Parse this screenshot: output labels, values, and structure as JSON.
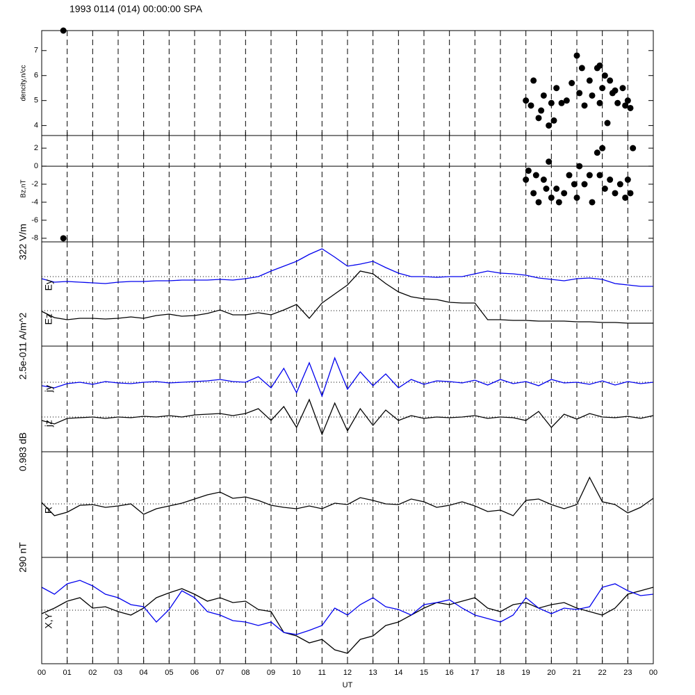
{
  "title": "1993 0114 (014) 00:00:00 SPA",
  "chart_data": [
    {
      "type": "scatter",
      "ylabel": "dencity,n/cc",
      "xlim": [
        0,
        24
      ],
      "ylim": [
        3.6,
        7.8
      ],
      "yticks": [
        4,
        5,
        6,
        7
      ],
      "color": "#000000",
      "x": [
        19.0,
        19.2,
        19.3,
        19.5,
        19.7,
        19.9,
        20.0,
        20.2,
        20.4,
        20.6,
        20.8,
        21.0,
        21.1,
        21.3,
        21.5,
        21.6,
        21.8,
        21.9,
        22.0,
        22.1,
        22.2,
        22.3,
        22.4,
        22.6,
        22.8,
        22.9,
        23.0,
        23.1,
        20.1,
        19.6,
        21.2,
        21.9,
        22.5,
        0.85
      ],
      "values": [
        5.0,
        4.8,
        5.8,
        4.3,
        5.2,
        4.0,
        4.9,
        5.5,
        4.9,
        5.0,
        5.7,
        6.8,
        5.3,
        4.8,
        5.8,
        5.2,
        6.3,
        4.9,
        5.5,
        6.0,
        4.1,
        5.8,
        5.3,
        4.9,
        5.5,
        4.8,
        5.0,
        4.7,
        4.2,
        4.6,
        6.3,
        6.4,
        5.4,
        7.8
      ]
    },
    {
      "type": "scatter",
      "ylabel": "Bz,nT",
      "xlim": [
        0,
        24
      ],
      "ylim": [
        -8.4,
        3.4
      ],
      "yticks": [
        -8,
        -6,
        -4,
        -2,
        0,
        2
      ],
      "zero_line": true,
      "color": "#000000",
      "x": [
        19.0,
        19.1,
        19.3,
        19.4,
        19.5,
        19.7,
        19.8,
        19.9,
        20.0,
        20.2,
        20.3,
        20.5,
        20.7,
        20.9,
        21.0,
        21.1,
        21.3,
        21.5,
        21.6,
        21.8,
        21.9,
        22.0,
        22.1,
        22.3,
        22.5,
        22.7,
        22.9,
        23.0,
        23.1,
        23.2,
        0.85
      ],
      "values": [
        -1.5,
        -0.5,
        -3.0,
        -1.0,
        -4.0,
        -1.5,
        -2.5,
        0.5,
        -3.5,
        -2.5,
        -4.0,
        -3.0,
        -1.0,
        -2.0,
        -3.5,
        0.0,
        -2.0,
        -1.0,
        -4.0,
        1.5,
        -1.0,
        2.0,
        -2.5,
        -1.5,
        -3.0,
        -2.0,
        -3.5,
        -1.5,
        -3.0,
        2.0,
        -8.0
      ]
    },
    {
      "type": "line",
      "scale_label": "322 V/m",
      "xlim": [
        0,
        24
      ],
      "ylim": [
        0,
        150
      ],
      "reference": [
        100,
        51
      ],
      "x": [
        0,
        0.5,
        1,
        1.5,
        2,
        2.5,
        3,
        3.5,
        4,
        4.5,
        5,
        5.5,
        6,
        6.5,
        7,
        7.5,
        8,
        8.5,
        9,
        9.5,
        10,
        10.5,
        11,
        11.5,
        12,
        12.5,
        13,
        13.5,
        14,
        14.5,
        15,
        15.5,
        16,
        16.5,
        17,
        17.5,
        18,
        18.5,
        19,
        19.5,
        20,
        20.5,
        21,
        21.5,
        22,
        22.5,
        23,
        23.5,
        24
      ],
      "series": [
        {
          "name": "Ey",
          "color": "#0000ee",
          "values": [
            97,
            92,
            93,
            92,
            91,
            90,
            92,
            93,
            93,
            94,
            94,
            95,
            95,
            95,
            96,
            95,
            97,
            100,
            108,
            115,
            122,
            132,
            140,
            128,
            115,
            118,
            122,
            113,
            105,
            100,
            100,
            99,
            100,
            100,
            104,
            108,
            105,
            104,
            102,
            98,
            96,
            94,
            97,
            98,
            96,
            90,
            88,
            86,
            86
          ]
        },
        {
          "name": "Ez",
          "color": "#000000",
          "values": [
            50,
            41,
            38,
            40,
            40,
            39,
            40,
            42,
            40,
            44,
            46,
            43,
            44,
            47,
            52,
            45,
            45,
            48,
            45,
            52,
            60,
            40,
            62,
            75,
            88,
            108,
            104,
            90,
            78,
            71,
            68,
            67,
            63,
            62,
            62,
            38,
            38,
            37,
            37,
            36,
            36,
            36,
            35,
            35,
            34,
            34,
            33,
            33,
            33
          ]
        }
      ]
    },
    {
      "type": "line",
      "scale_label": "2.5e-011 A/m^2",
      "xlim": [
        0,
        24
      ],
      "ylim": [
        0,
        152
      ],
      "reference": [
        100,
        50
      ],
      "x": [
        0,
        0.5,
        1,
        1.5,
        2,
        2.5,
        3,
        3.5,
        4,
        4.5,
        5,
        5.5,
        6,
        6.5,
        7,
        7.5,
        8,
        8.5,
        9,
        9.5,
        10,
        10.5,
        11,
        11.5,
        12,
        12.5,
        13,
        13.5,
        14,
        14.5,
        15,
        15.5,
        16,
        16.5,
        17,
        17.5,
        18,
        18.5,
        19,
        19.5,
        20,
        20.5,
        21,
        21.5,
        22,
        22.5,
        23,
        23.5,
        24
      ],
      "series": [
        {
          "name": "jy",
          "color": "#0000ee",
          "values": [
            95,
            92,
            98,
            100,
            97,
            101,
            99,
            98,
            100,
            101,
            99,
            100,
            101,
            102,
            104,
            101,
            100,
            108,
            92,
            120,
            85,
            128,
            80,
            135,
            90,
            115,
            95,
            112,
            92,
            104,
            97,
            102,
            101,
            99,
            103,
            96,
            104,
            98,
            101,
            95,
            104,
            99,
            100,
            97,
            102,
            96,
            101,
            98,
            100
          ]
        },
        {
          "name": "jz",
          "color": "#000000",
          "values": [
            45,
            40,
            48,
            49,
            50,
            48,
            50,
            49,
            51,
            50,
            52,
            50,
            53,
            54,
            55,
            52,
            55,
            62,
            45,
            65,
            35,
            75,
            25,
            70,
            30,
            62,
            38,
            60,
            45,
            52,
            48,
            50,
            49,
            50,
            52,
            48,
            50,
            49,
            45,
            58,
            35,
            54,
            47,
            55,
            50,
            49,
            51,
            48,
            52
          ]
        }
      ]
    },
    {
      "type": "line",
      "scale_label": "0.983 dB",
      "label": "R",
      "xlim": [
        0,
        24
      ],
      "ylim": [
        0,
        152
      ],
      "reference": [
        77
      ],
      "x": [
        0,
        0.5,
        1,
        1.5,
        2,
        2.5,
        3,
        3.5,
        4,
        4.5,
        5,
        5.5,
        6,
        6.5,
        7,
        7.5,
        8,
        8.5,
        9,
        9.5,
        10,
        10.5,
        11,
        11.5,
        12,
        12.5,
        13,
        13.5,
        14,
        14.5,
        15,
        15.5,
        16,
        16.5,
        17,
        17.5,
        18,
        18.5,
        19,
        19.5,
        20,
        20.5,
        21,
        21.5,
        22,
        22.5,
        23,
        23.5,
        24
      ],
      "series": [
        {
          "color": "#000000",
          "values": [
            79,
            60,
            65,
            75,
            76,
            72,
            74,
            77,
            62,
            70,
            74,
            78,
            84,
            90,
            94,
            85,
            87,
            82,
            75,
            72,
            70,
            74,
            70,
            78,
            76,
            86,
            82,
            77,
            76,
            84,
            80,
            72,
            75,
            80,
            74,
            66,
            68,
            60,
            82,
            84,
            76,
            70,
            76,
            115,
            80,
            76,
            64,
            72,
            85
          ]
        }
      ]
    },
    {
      "type": "line",
      "scale_label": "290 nT",
      "label": "X,Y",
      "xlim": [
        0,
        24
      ],
      "ylim": [
        0,
        153
      ],
      "reference": [
        77
      ],
      "xlabel": "UT",
      "x": [
        0,
        0.5,
        1,
        1.5,
        2,
        2.5,
        3,
        3.5,
        4,
        4.5,
        5,
        5.5,
        6,
        6.5,
        7,
        7.5,
        8,
        8.5,
        9,
        9.5,
        10,
        10.5,
        11,
        11.5,
        12,
        12.5,
        13,
        13.5,
        14,
        14.5,
        15,
        15.5,
        16,
        16.5,
        17,
        17.5,
        18,
        18.5,
        19,
        19.5,
        20,
        20.5,
        21,
        21.5,
        22,
        22.5,
        23,
        23.5,
        24
      ],
      "xticks": [
        {
          "value": 0,
          "label": "00"
        },
        {
          "value": 1,
          "label": "01"
        },
        {
          "value": 2,
          "label": "02"
        },
        {
          "value": 3,
          "label": "03"
        },
        {
          "value": 4,
          "label": "04"
        },
        {
          "value": 5,
          "label": "05"
        },
        {
          "value": 6,
          "label": "06"
        },
        {
          "value": 7,
          "label": "07"
        },
        {
          "value": 8,
          "label": "08"
        },
        {
          "value": 9,
          "label": "09"
        },
        {
          "value": 10,
          "label": "10"
        },
        {
          "value": 11,
          "label": "11"
        },
        {
          "value": 12,
          "label": "12"
        },
        {
          "value": 13,
          "label": "13"
        },
        {
          "value": 14,
          "label": "14"
        },
        {
          "value": 15,
          "label": "15"
        },
        {
          "value": 16,
          "label": "16"
        },
        {
          "value": 17,
          "label": "17"
        },
        {
          "value": 18,
          "label": "18"
        },
        {
          "value": 19,
          "label": "19"
        },
        {
          "value": 20,
          "label": "20"
        },
        {
          "value": 21,
          "label": "21"
        },
        {
          "value": 22,
          "label": "22"
        },
        {
          "value": 23,
          "label": "23"
        },
        {
          "value": 24,
          "label": "00"
        }
      ],
      "series": [
        {
          "color": "#000000",
          "values": [
            72,
            80,
            90,
            95,
            80,
            82,
            75,
            70,
            80,
            95,
            102,
            108,
            100,
            90,
            95,
            88,
            90,
            78,
            75,
            45,
            40,
            30,
            35,
            20,
            15,
            35,
            40,
            55,
            60,
            70,
            80,
            88,
            85,
            90,
            95,
            80,
            75,
            85,
            88,
            80,
            85,
            88,
            80,
            75,
            70,
            80,
            100,
            105,
            110
          ]
        },
        {
          "color": "#0000ee",
          "values": [
            110,
            100,
            115,
            120,
            112,
            100,
            95,
            85,
            82,
            60,
            78,
            105,
            95,
            75,
            70,
            62,
            60,
            55,
            60,
            45,
            42,
            48,
            55,
            80,
            70,
            85,
            95,
            82,
            78,
            70,
            85,
            88,
            92,
            80,
            70,
            65,
            60,
            70,
            95,
            80,
            72,
            80,
            78,
            82,
            110,
            115,
            105,
            98,
            100
          ]
        }
      ]
    }
  ]
}
